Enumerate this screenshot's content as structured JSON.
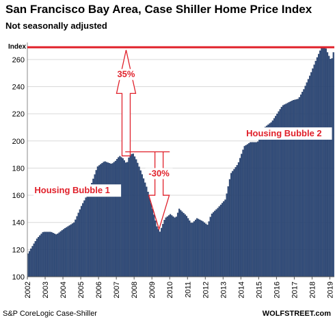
{
  "header": {
    "title": "San Francisco Bay Area, Case Shiller Home Price Index",
    "subtitle": "Not seasonally adjusted"
  },
  "footer": {
    "source": "S&P CoreLogic Case-Shiller",
    "brand": "WOLFSTREET.com"
  },
  "colors": {
    "bar": "#2e4a7a",
    "bar_edge": "#1d3358",
    "accent": "#e0202a",
    "grid": "#d9d9d9"
  },
  "chart_data": {
    "type": "bar",
    "title": "San Francisco Bay Area, Case Shiller Home Price Index",
    "subtitle": "Not seasonally adjusted",
    "ylabel": "Index",
    "xlabel": "",
    "ylim": [
      100,
      270
    ],
    "yticks": [
      100,
      120,
      140,
      160,
      180,
      200,
      220,
      240,
      260
    ],
    "xtick_labels": [
      "2002",
      "2003",
      "2004",
      "2005",
      "2006",
      "2007",
      "2008",
      "2009",
      "2010",
      "2011",
      "2012",
      "2013",
      "2014",
      "2015",
      "2016",
      "2017",
      "2018",
      "2019"
    ],
    "grid": true,
    "frequency": "monthly",
    "start": "2002-01",
    "end": "2019-03",
    "reference_line": {
      "value": 269,
      "color": "#e0202a"
    },
    "annotations": [
      {
        "text": "35%",
        "kind": "up-arrow"
      },
      {
        "text": "-30%",
        "kind": "down-arrow"
      },
      {
        "text": "Housing Bubble 1"
      },
      {
        "text": "Housing Bubble 2"
      }
    ],
    "anchors": [
      [
        2002.0,
        117
      ],
      [
        2002.5,
        128
      ],
      [
        2002.85,
        133
      ],
      [
        2003.3,
        133
      ],
      [
        2003.6,
        131
      ],
      [
        2004.0,
        135
      ],
      [
        2004.6,
        140
      ],
      [
        2005.0,
        152
      ],
      [
        2005.4,
        162
      ],
      [
        2005.9,
        181
      ],
      [
        2006.3,
        185
      ],
      [
        2006.7,
        183
      ],
      [
        2006.9,
        185
      ],
      [
        2007.15,
        189
      ],
      [
        2007.35,
        187
      ],
      [
        2007.55,
        183
      ],
      [
        2007.7,
        189
      ],
      [
        2007.9,
        191
      ],
      [
        2008.1,
        186
      ],
      [
        2008.4,
        176
      ],
      [
        2008.7,
        165
      ],
      [
        2009.0,
        150
      ],
      [
        2009.25,
        137
      ],
      [
        2009.42,
        133
      ],
      [
        2009.7,
        143
      ],
      [
        2010.0,
        146
      ],
      [
        2010.3,
        143
      ],
      [
        2010.5,
        150
      ],
      [
        2010.9,
        145
      ],
      [
        2011.2,
        139
      ],
      [
        2011.5,
        143
      ],
      [
        2011.8,
        141
      ],
      [
        2012.1,
        138
      ],
      [
        2012.3,
        146
      ],
      [
        2012.7,
        151
      ],
      [
        2013.1,
        157
      ],
      [
        2013.4,
        176
      ],
      [
        2013.8,
        183
      ],
      [
        2014.15,
        196
      ],
      [
        2014.5,
        199
      ],
      [
        2014.9,
        199
      ],
      [
        2015.3,
        210
      ],
      [
        2015.7,
        214
      ],
      [
        2016.0,
        220
      ],
      [
        2016.3,
        226
      ],
      [
        2016.9,
        230
      ],
      [
        2017.2,
        231
      ],
      [
        2017.5,
        238
      ],
      [
        2017.9,
        250
      ],
      [
        2018.2,
        260
      ],
      [
        2018.5,
        269
      ],
      [
        2018.75,
        268
      ],
      [
        2018.9,
        263
      ],
      [
        2019.05,
        259
      ],
      [
        2019.2,
        267
      ]
    ]
  }
}
